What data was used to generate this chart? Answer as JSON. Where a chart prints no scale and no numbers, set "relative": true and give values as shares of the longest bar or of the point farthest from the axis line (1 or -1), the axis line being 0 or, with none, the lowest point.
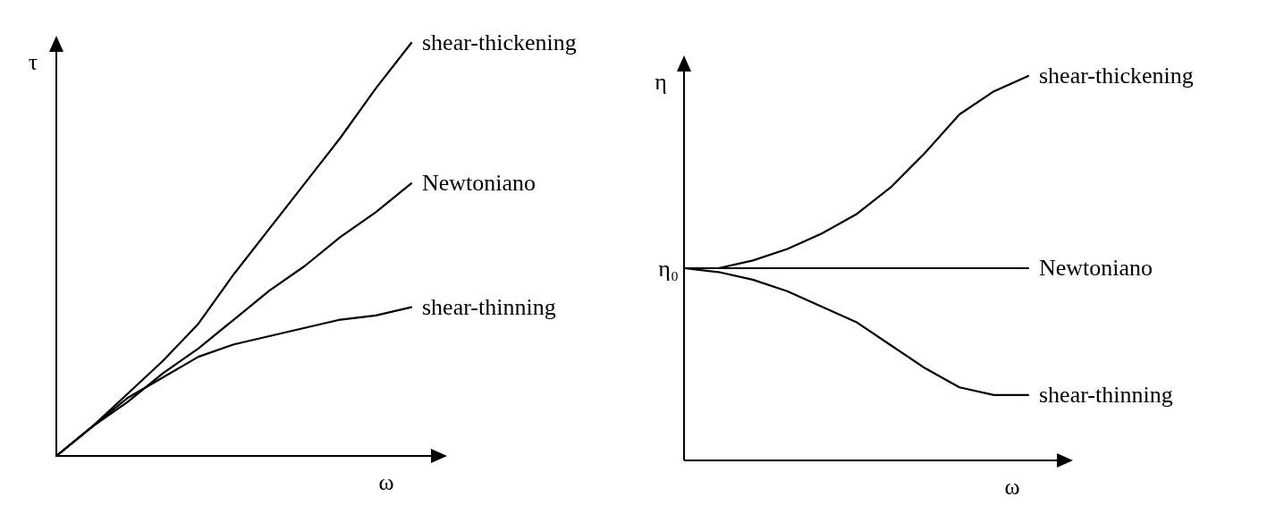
{
  "chart_data": [
    {
      "type": "line",
      "relative": true,
      "xlabel": "ω",
      "ylabel": "τ",
      "categories": [
        null,
        null,
        null,
        null,
        null,
        null,
        null,
        null,
        null,
        null,
        null
      ],
      "series": [
        {
          "name": "shear-thickening",
          "color": "#000000",
          "values": [
            0,
            0.07,
            0.15,
            0.23,
            0.32,
            0.44,
            0.55,
            0.66,
            0.77,
            0.89,
            1
          ]
        },
        {
          "name": "Newtoniano",
          "color": "#000000",
          "values": [
            0,
            0.07,
            0.13,
            0.2,
            0.26,
            0.33,
            0.4,
            0.46,
            0.53,
            0.59,
            0.66
          ]
        },
        {
          "name": "shear-thinning",
          "color": "#000000",
          "values": [
            0,
            0.07,
            0.14,
            0.19,
            0.24,
            0.27,
            0.29,
            0.31,
            0.33,
            0.34,
            0.36
          ]
        }
      ]
    },
    {
      "type": "line",
      "relative": true,
      "xlabel": "ω",
      "ylabel": "η",
      "categories": [
        null,
        null,
        null,
        null,
        null,
        null,
        null,
        null,
        null,
        null,
        null
      ],
      "annotations": [
        "η₀"
      ],
      "series": [
        {
          "name": "shear-thickening",
          "color": "#000000",
          "values": [
            0.5,
            0.5,
            0.52,
            0.55,
            0.59,
            0.64,
            0.71,
            0.8,
            0.9,
            0.96,
            1
          ]
        },
        {
          "name": "Newtoniano",
          "color": "#000000",
          "values": [
            0.5,
            0.5,
            0.5,
            0.5,
            0.5,
            0.5,
            0.5,
            0.5,
            0.5,
            0.5,
            0.5
          ]
        },
        {
          "name": "shear-thinning",
          "color": "#000000",
          "values": [
            0.5,
            0.49,
            0.47,
            0.44,
            0.4,
            0.36,
            0.3,
            0.24,
            0.19,
            0.17,
            0.17
          ]
        }
      ]
    }
  ]
}
